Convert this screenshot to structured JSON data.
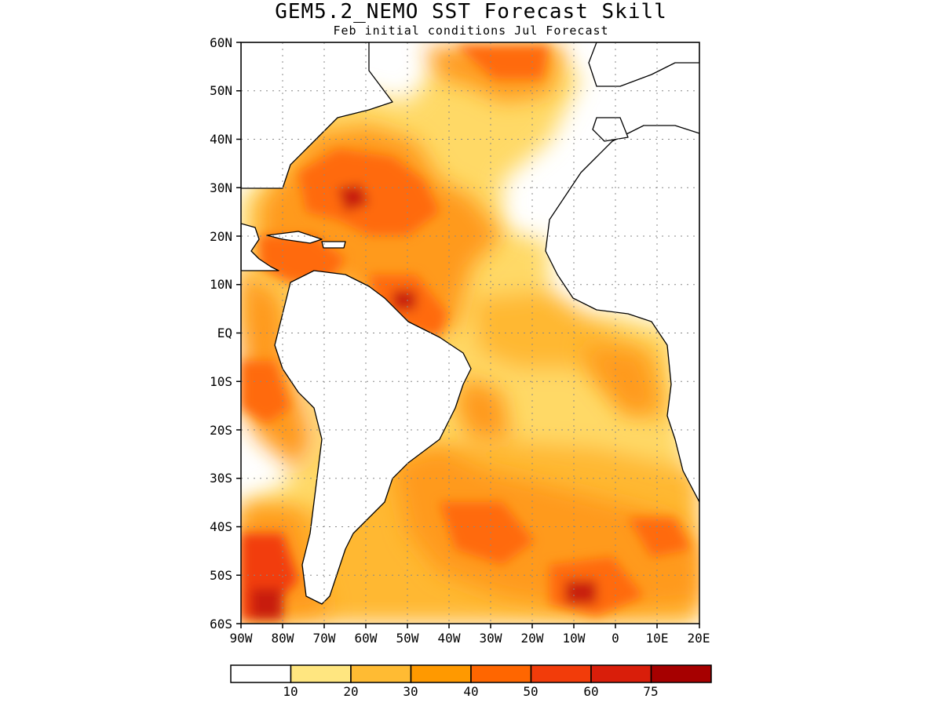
{
  "header": {
    "title": "GEM5.2_NEMO SST Forecast Skill",
    "subtitle": "Feb initial conditions  Jul Forecast"
  },
  "map": {
    "type": "filled-contour-map",
    "region": "Atlantic Ocean",
    "lon_range": [
      -90,
      20
    ],
    "lat_range": [
      -60,
      60
    ],
    "grid": true,
    "land_color": "#ffffff",
    "coastline_color": "#000000"
  },
  "axes": {
    "y_ticks": [
      "60N",
      "50N",
      "40N",
      "30N",
      "20N",
      "10N",
      "EQ",
      "10S",
      "20S",
      "30S",
      "40S",
      "50S",
      "60S"
    ],
    "x_ticks": [
      "90W",
      "80W",
      "70W",
      "60W",
      "50W",
      "40W",
      "30W",
      "20W",
      "10W",
      "0",
      "10E",
      "20E"
    ]
  },
  "colorbar": {
    "labels": [
      "10",
      "20",
      "30",
      "40",
      "50",
      "60",
      "75"
    ],
    "colors": [
      "#ffffff",
      "#ffe680",
      "#ffbb33",
      "#ff9900",
      "#ff6600",
      "#f23c0a",
      "#d91e0a",
      "#a60000"
    ]
  }
}
